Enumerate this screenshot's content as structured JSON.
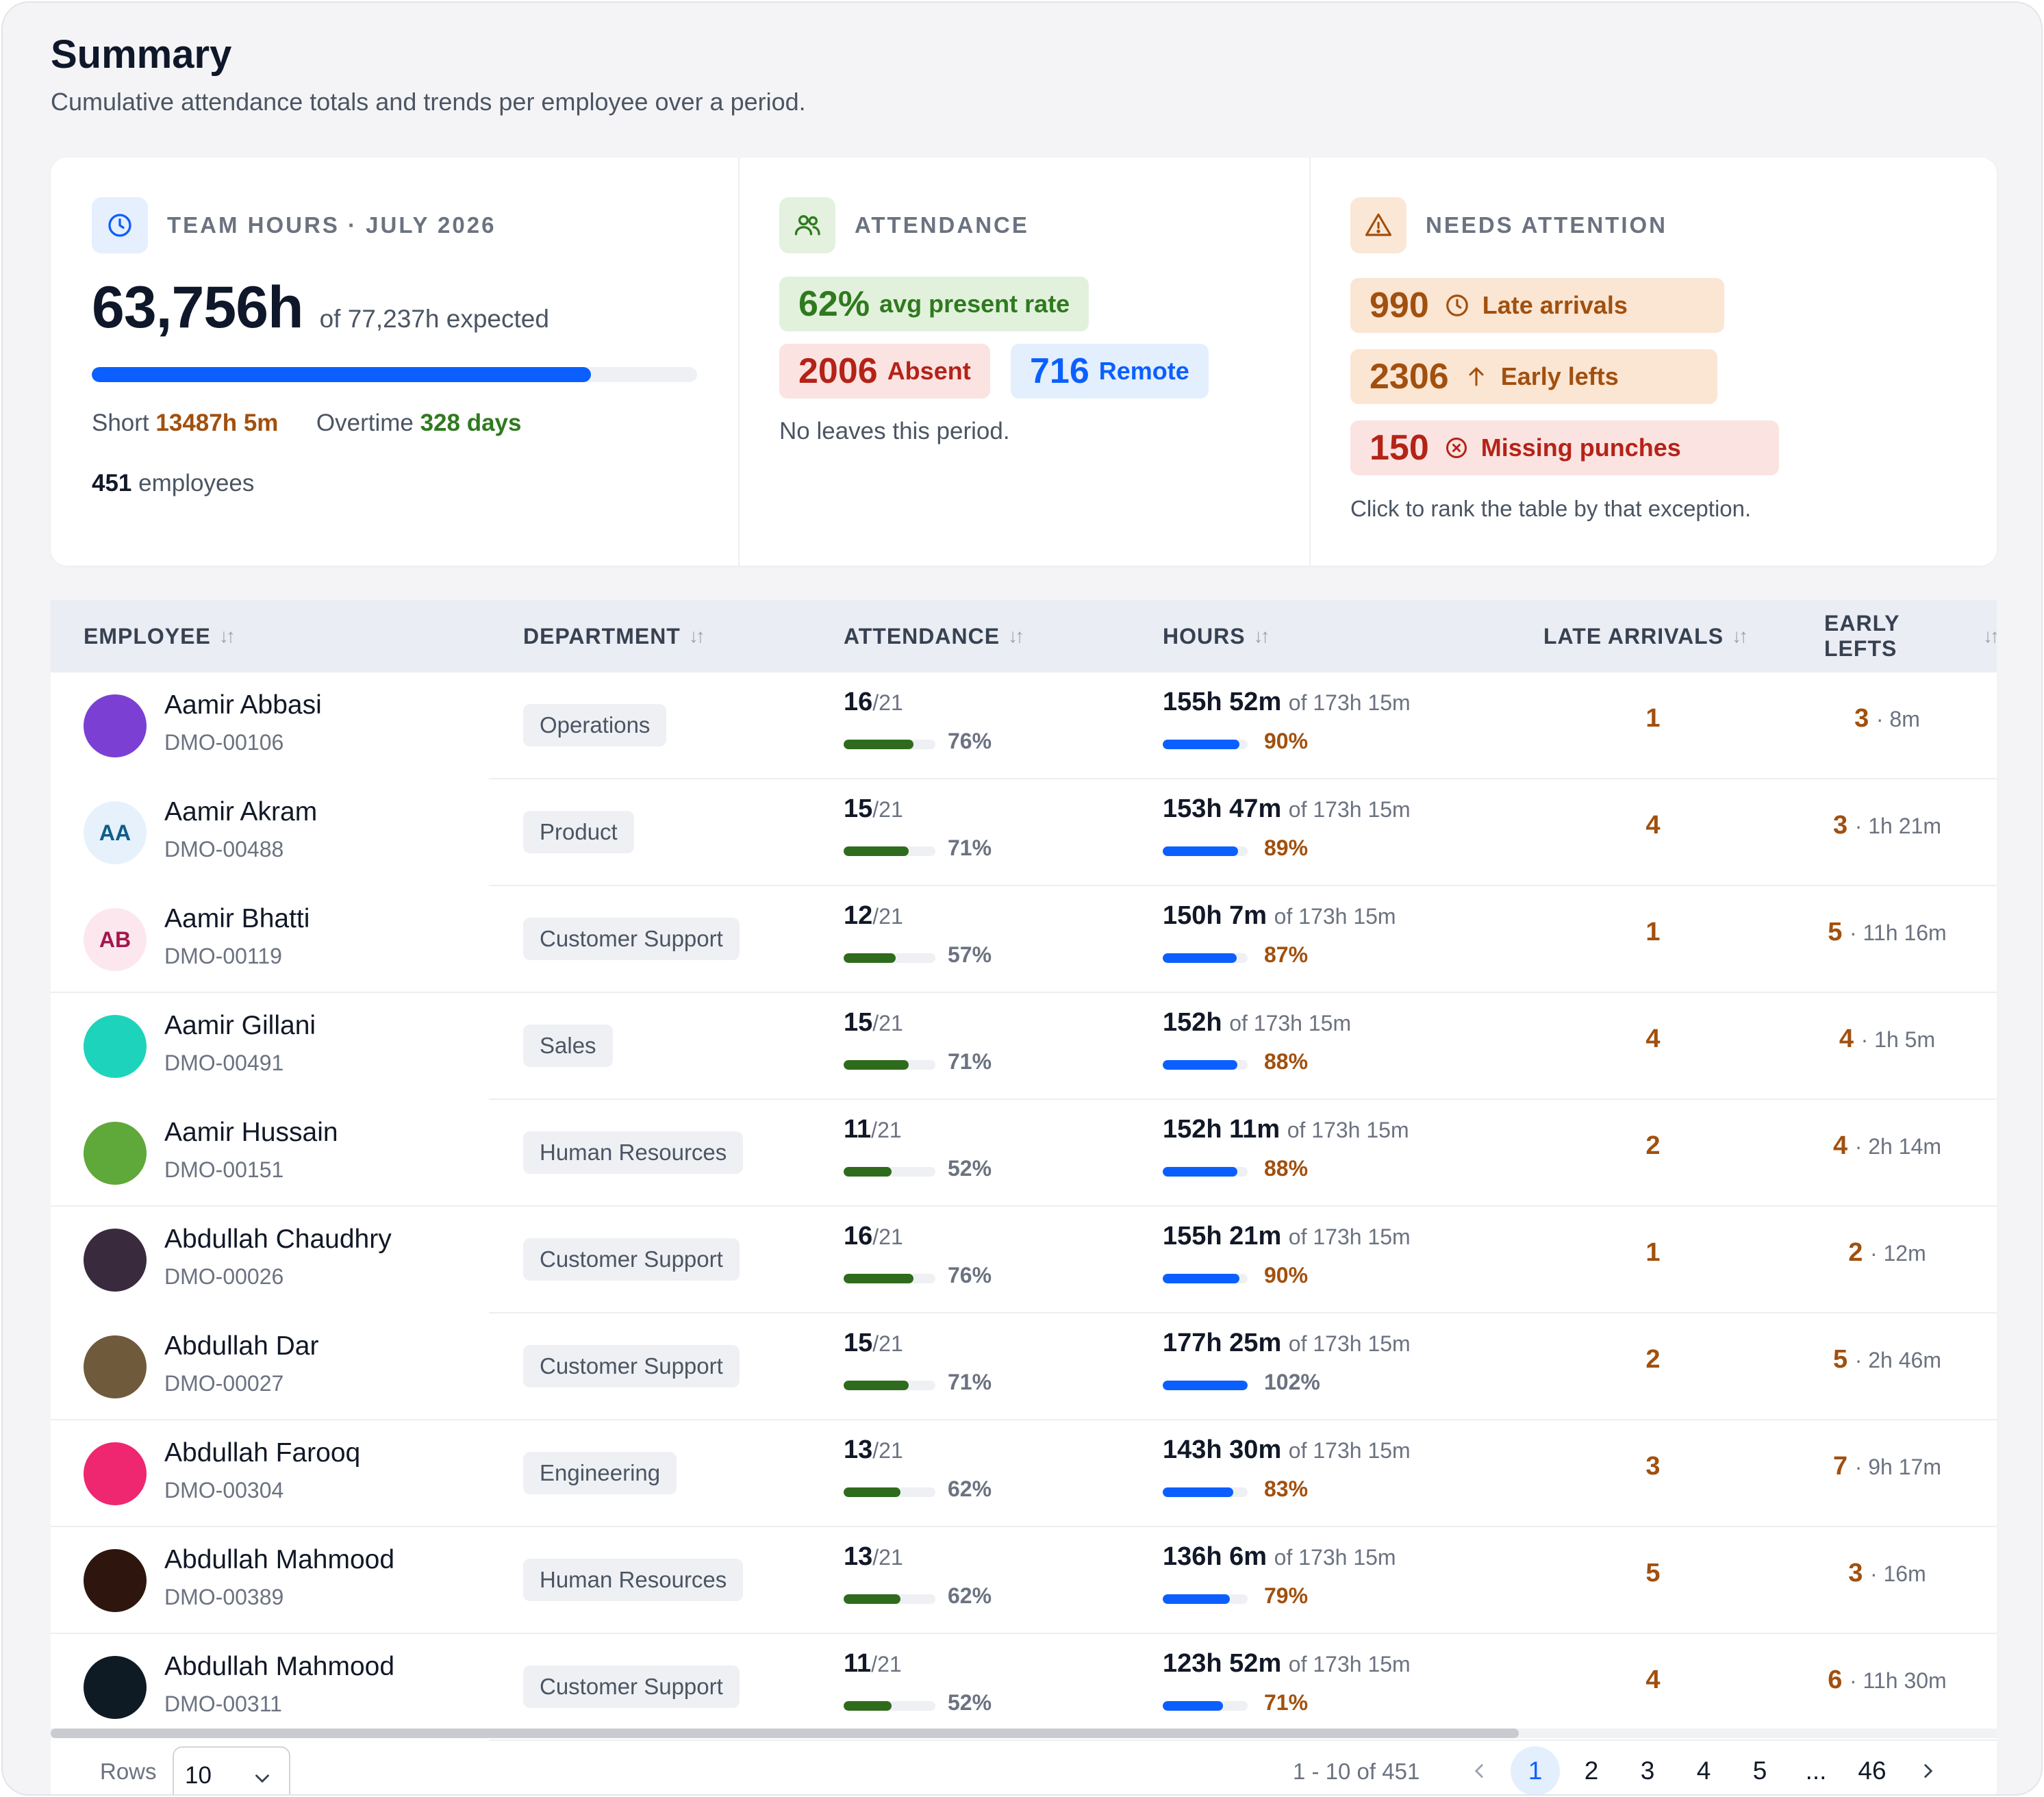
{
  "header": {
    "title": "Summary",
    "subtitle": "Cumulative attendance totals and trends per employee over a period."
  },
  "team_hours": {
    "label": "TEAM HOURS · JULY 2026",
    "icon": "clock-icon",
    "total": "63,756h",
    "expected": "of 77,237h expected",
    "progress_fraction": 0.825,
    "short_label": "Short",
    "short_value": "13487h 5m",
    "overtime_label": "Overtime",
    "overtime_value": "328 days",
    "employees_count": "451",
    "employees_label": "employees"
  },
  "attendance": {
    "label": "ATTENDANCE",
    "icon": "users-icon",
    "present_value": "62%",
    "present_label": "avg present rate",
    "absent_value": "2006",
    "absent_label": "Absent",
    "remote_value": "716",
    "remote_label": "Remote",
    "note": "No leaves this period."
  },
  "needs_attention": {
    "label": "NEEDS ATTENTION",
    "icon": "warning-icon",
    "items": [
      {
        "value": "990",
        "label": "Late arrivals",
        "icon": "clock-icon"
      },
      {
        "value": "2306",
        "label": "Early lefts",
        "icon": "arrow-up-icon"
      },
      {
        "value": "150",
        "label": "Missing punches",
        "icon": "x-circle-icon"
      }
    ],
    "note": "Click to rank the table by that exception."
  },
  "table": {
    "columns": {
      "employee": "EMPLOYEE",
      "department": "DEPARTMENT",
      "attendance": "ATTENDANCE",
      "hours": "HOURS",
      "late": "LATE ARRIVALS",
      "early": "EARLY LEFTS"
    },
    "rows": [
      {
        "name": "Aamir Abbasi",
        "id": "DMO-00106",
        "avatar_color": "#7c3fd4",
        "initials": "",
        "department": "Operations",
        "att_days": "16",
        "att_of": "/21",
        "att_pct": "76%",
        "att_fraction": 0.76,
        "hours": "155h 52m",
        "hours_of": "of 173h 15m",
        "hours_pct": "90%",
        "hours_fraction": 0.9,
        "late": "1",
        "early": "3",
        "early_dur": "· 8m"
      },
      {
        "name": "Aamir Akram",
        "id": "DMO-00488",
        "avatar_color": "#e6f1fb",
        "initials": "AA",
        "initials_color": "#0f5e8a",
        "department": "Product",
        "att_days": "15",
        "att_of": "/21",
        "att_pct": "71%",
        "att_fraction": 0.71,
        "hours": "153h 47m",
        "hours_of": "of 173h 15m",
        "hours_pct": "89%",
        "hours_fraction": 0.89,
        "late": "4",
        "early": "3",
        "early_dur": "· 1h 21m"
      },
      {
        "name": "Aamir Bhatti",
        "id": "DMO-00119",
        "avatar_color": "#fce7ef",
        "initials": "AB",
        "initials_color": "#a3174d",
        "department": "Customer Support",
        "att_days": "12",
        "att_of": "/21",
        "att_pct": "57%",
        "att_fraction": 0.57,
        "hours": "150h 7m",
        "hours_of": "of 173h 15m",
        "hours_pct": "87%",
        "hours_fraction": 0.87,
        "late": "1",
        "early": "5",
        "early_dur": "· 11h 16m"
      },
      {
        "name": "Aamir Gillani",
        "id": "DMO-00491",
        "avatar_color": "#1ed3bb",
        "initials": "",
        "department": "Sales",
        "att_days": "15",
        "att_of": "/21",
        "att_pct": "71%",
        "att_fraction": 0.71,
        "hours": "152h",
        "hours_of": "of 173h 15m",
        "hours_pct": "88%",
        "hours_fraction": 0.88,
        "late": "4",
        "early": "4",
        "early_dur": "· 1h 5m"
      },
      {
        "name": "Aamir Hussain",
        "id": "DMO-00151",
        "avatar_color": "#5fa83a",
        "initials": "",
        "department": "Human Resources",
        "att_days": "11",
        "att_of": "/21",
        "att_pct": "52%",
        "att_fraction": 0.52,
        "hours": "152h 11m",
        "hours_of": "of 173h 15m",
        "hours_pct": "88%",
        "hours_fraction": 0.88,
        "late": "2",
        "early": "4",
        "early_dur": "· 2h 14m"
      },
      {
        "name": "Abdullah Chaudhry",
        "id": "DMO-00026",
        "avatar_color": "#3a2a3e",
        "initials": "",
        "department": "Customer Support",
        "att_days": "16",
        "att_of": "/21",
        "att_pct": "76%",
        "att_fraction": 0.76,
        "hours": "155h 21m",
        "hours_of": "of 173h 15m",
        "hours_pct": "90%",
        "hours_fraction": 0.9,
        "late": "1",
        "early": "2",
        "early_dur": "· 12m"
      },
      {
        "name": "Abdullah Dar",
        "id": "DMO-00027",
        "avatar_color": "#6f5a3c",
        "initials": "",
        "department": "Customer Support",
        "att_days": "15",
        "att_of": "/21",
        "att_pct": "71%",
        "att_fraction": 0.71,
        "hours": "177h 25m",
        "hours_of": "of 173h 15m",
        "hours_pct": "102%",
        "hours_fraction": 1.0,
        "hours_ok": true,
        "late": "2",
        "early": "5",
        "early_dur": "· 2h 46m"
      },
      {
        "name": "Abdullah Farooq",
        "id": "DMO-00304",
        "avatar_color": "#ef2670",
        "initials": "",
        "department": "Engineering",
        "att_days": "13",
        "att_of": "/21",
        "att_pct": "62%",
        "att_fraction": 0.62,
        "hours": "143h 30m",
        "hours_of": "of 173h 15m",
        "hours_pct": "83%",
        "hours_fraction": 0.83,
        "late": "3",
        "early": "7",
        "early_dur": "· 9h 17m"
      },
      {
        "name": "Abdullah Mahmood",
        "id": "DMO-00389",
        "avatar_color": "#2e160e",
        "initials": "",
        "department": "Human Resources",
        "att_days": "13",
        "att_of": "/21",
        "att_pct": "62%",
        "att_fraction": 0.62,
        "hours": "136h 6m",
        "hours_of": "of 173h 15m",
        "hours_pct": "79%",
        "hours_fraction": 0.79,
        "late": "5",
        "early": "3",
        "early_dur": "· 16m"
      },
      {
        "name": "Abdullah Mahmood",
        "id": "DMO-00311",
        "avatar_color": "#0f1b24",
        "initials": "",
        "department": "Customer Support",
        "att_days": "11",
        "att_of": "/21",
        "att_pct": "52%",
        "att_fraction": 0.52,
        "hours": "123h 52m",
        "hours_of": "of 173h 15m",
        "hours_pct": "71%",
        "hours_fraction": 0.71,
        "late": "4",
        "early": "6",
        "early_dur": "· 11h 30m"
      }
    ]
  },
  "footer": {
    "rows_label": "Rows",
    "rows_value": "10",
    "range": "1 - 10 of 451",
    "pages": [
      "1",
      "2",
      "3",
      "4",
      "5",
      "...",
      "46"
    ],
    "active_page": "1"
  },
  "colors": {
    "accent": "#0b5fff",
    "warning": "#a1500e",
    "success": "#2f7a1f",
    "danger": "#b42318"
  }
}
